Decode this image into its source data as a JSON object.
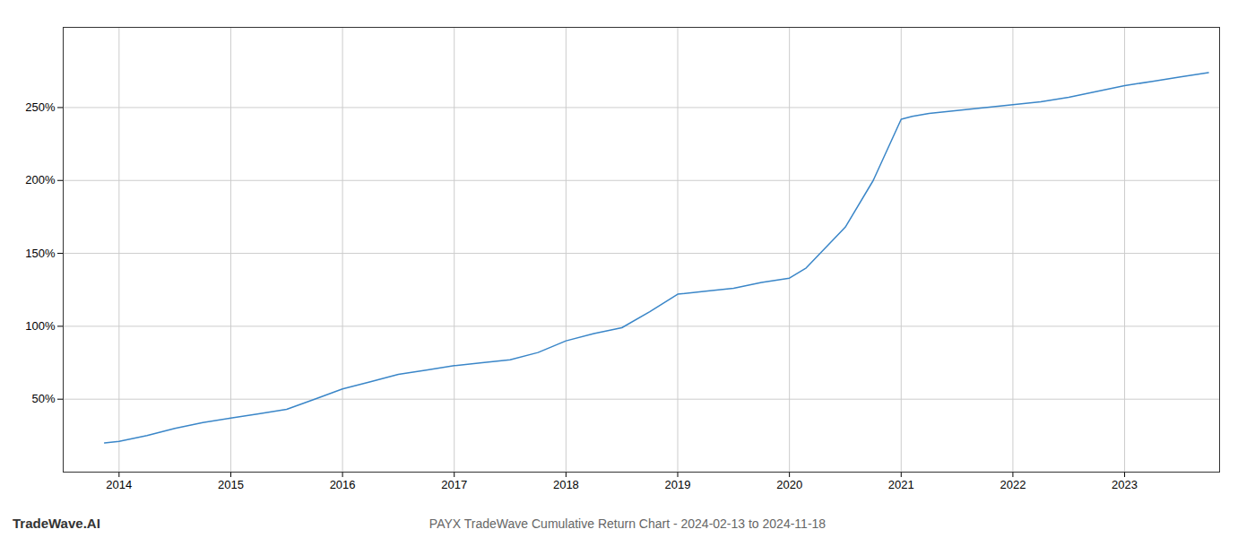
{
  "chart_data": {
    "type": "line",
    "title": "PAYX TradeWave Cumulative Return Chart - 2024-02-13 to 2024-11-18",
    "annotations": [
      "TradeWave.AI"
    ],
    "x": [
      2013.87,
      2014.0,
      2014.25,
      2014.5,
      2014.75,
      2015.0,
      2015.25,
      2015.5,
      2015.75,
      2016.0,
      2016.25,
      2016.5,
      2016.75,
      2017.0,
      2017.25,
      2017.5,
      2017.75,
      2018.0,
      2018.25,
      2018.5,
      2018.75,
      2019.0,
      2019.25,
      2019.5,
      2019.75,
      2020.0,
      2020.15,
      2020.5,
      2020.75,
      2021.0,
      2021.1,
      2021.25,
      2021.5,
      2021.75,
      2022.0,
      2022.25,
      2022.5,
      2022.75,
      2023.0,
      2023.25,
      2023.5,
      2023.75
    ],
    "values": [
      20,
      21,
      25,
      30,
      34,
      37,
      40,
      43,
      50,
      57,
      62,
      67,
      70,
      73,
      75,
      77,
      82,
      90,
      95,
      99,
      110,
      122,
      124,
      126,
      130,
      133,
      140,
      168,
      200,
      242,
      244,
      246,
      248,
      250,
      252,
      254,
      257,
      261,
      265,
      268,
      271,
      274
    ],
    "color": "#3a86c8",
    "xlim": [
      2013.5,
      2023.85
    ],
    "xticks": [
      2014,
      2015,
      2016,
      2017,
      2018,
      2019,
      2020,
      2021,
      2022,
      2023
    ],
    "ylim": [
      0,
      305
    ],
    "yticks": [
      {
        "value": 50,
        "label": "50%"
      },
      {
        "value": 100,
        "label": "100%"
      },
      {
        "value": 150,
        "label": "150%"
      },
      {
        "value": 200,
        "label": "200%"
      },
      {
        "value": 250,
        "label": "250%"
      }
    ],
    "grid": true
  }
}
